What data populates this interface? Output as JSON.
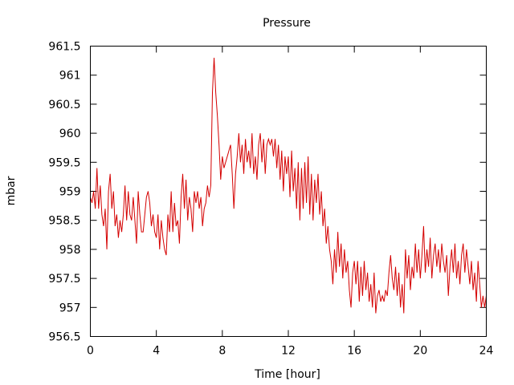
{
  "chart_data": {
    "type": "line",
    "title": "Pressure",
    "xlabel": "Time [hour]",
    "ylabel": "mbar",
    "xlim": [
      0,
      24
    ],
    "ylim": [
      956.5,
      961.5
    ],
    "xticks": [
      0,
      4,
      8,
      12,
      16,
      20,
      24
    ],
    "yticks": [
      956.5,
      957,
      957.5,
      958,
      958.5,
      959,
      959.5,
      960,
      960.5,
      961,
      961.5
    ],
    "ytick_labels": [
      "956.5",
      "957",
      "957.5",
      "958",
      "958.5",
      "959",
      "959.5",
      "960",
      "960.5",
      "961",
      "961.5"
    ],
    "grid": false,
    "legend": "none",
    "series": [
      {
        "color": "#d40000",
        "points": [
          [
            0.0,
            958.9
          ],
          [
            0.1,
            958.8
          ],
          [
            0.2,
            959.0
          ],
          [
            0.3,
            958.7
          ],
          [
            0.4,
            959.4
          ],
          [
            0.5,
            958.7
          ],
          [
            0.6,
            959.1
          ],
          [
            0.7,
            958.6
          ],
          [
            0.8,
            958.4
          ],
          [
            0.9,
            958.7
          ],
          [
            1.0,
            958.0
          ],
          [
            1.1,
            959.0
          ],
          [
            1.2,
            959.3
          ],
          [
            1.3,
            958.7
          ],
          [
            1.4,
            959.0
          ],
          [
            1.5,
            958.4
          ],
          [
            1.6,
            958.6
          ],
          [
            1.7,
            958.2
          ],
          [
            1.8,
            958.5
          ],
          [
            1.9,
            958.3
          ],
          [
            2.0,
            958.6
          ],
          [
            2.1,
            959.1
          ],
          [
            2.2,
            958.5
          ],
          [
            2.3,
            959.0
          ],
          [
            2.4,
            958.6
          ],
          [
            2.5,
            958.5
          ],
          [
            2.6,
            958.9
          ],
          [
            2.7,
            958.5
          ],
          [
            2.8,
            958.1
          ],
          [
            2.9,
            959.0
          ],
          [
            3.0,
            958.6
          ],
          [
            3.1,
            958.3
          ],
          [
            3.2,
            958.3
          ],
          [
            3.3,
            958.6
          ],
          [
            3.4,
            958.9
          ],
          [
            3.5,
            959.0
          ],
          [
            3.6,
            958.8
          ],
          [
            3.7,
            958.4
          ],
          [
            3.8,
            958.6
          ],
          [
            3.9,
            958.3
          ],
          [
            4.0,
            958.2
          ],
          [
            4.1,
            958.6
          ],
          [
            4.2,
            958.0
          ],
          [
            4.3,
            958.5
          ],
          [
            4.4,
            958.2
          ],
          [
            4.5,
            958.0
          ],
          [
            4.6,
            957.9
          ],
          [
            4.7,
            958.6
          ],
          [
            4.8,
            958.3
          ],
          [
            4.9,
            959.0
          ],
          [
            5.0,
            958.3
          ],
          [
            5.1,
            958.8
          ],
          [
            5.2,
            958.4
          ],
          [
            5.3,
            958.5
          ],
          [
            5.4,
            958.1
          ],
          [
            5.5,
            958.9
          ],
          [
            5.6,
            959.3
          ],
          [
            5.7,
            958.7
          ],
          [
            5.8,
            959.2
          ],
          [
            5.9,
            958.5
          ],
          [
            6.0,
            958.9
          ],
          [
            6.1,
            958.7
          ],
          [
            6.2,
            958.3
          ],
          [
            6.3,
            959.0
          ],
          [
            6.4,
            958.8
          ],
          [
            6.5,
            959.0
          ],
          [
            6.6,
            958.7
          ],
          [
            6.7,
            958.9
          ],
          [
            6.8,
            958.4
          ],
          [
            6.9,
            958.7
          ],
          [
            7.0,
            958.8
          ],
          [
            7.1,
            959.1
          ],
          [
            7.2,
            958.9
          ],
          [
            7.3,
            959.1
          ],
          [
            7.4,
            960.7
          ],
          [
            7.5,
            961.3
          ],
          [
            7.6,
            960.7
          ],
          [
            7.7,
            960.3
          ],
          [
            7.8,
            959.8
          ],
          [
            7.9,
            959.2
          ],
          [
            8.0,
            959.6
          ],
          [
            8.1,
            959.4
          ],
          [
            8.2,
            959.5
          ],
          [
            8.3,
            959.6
          ],
          [
            8.4,
            959.7
          ],
          [
            8.5,
            959.8
          ],
          [
            8.6,
            959.3
          ],
          [
            8.7,
            958.7
          ],
          [
            8.8,
            959.3
          ],
          [
            8.9,
            959.6
          ],
          [
            9.0,
            960.0
          ],
          [
            9.1,
            959.5
          ],
          [
            9.2,
            959.8
          ],
          [
            9.3,
            959.3
          ],
          [
            9.4,
            959.9
          ],
          [
            9.5,
            959.5
          ],
          [
            9.6,
            959.7
          ],
          [
            9.7,
            959.4
          ],
          [
            9.8,
            960.0
          ],
          [
            9.9,
            959.3
          ],
          [
            10.0,
            959.6
          ],
          [
            10.1,
            959.2
          ],
          [
            10.2,
            959.8
          ],
          [
            10.3,
            960.0
          ],
          [
            10.4,
            959.5
          ],
          [
            10.5,
            959.9
          ],
          [
            10.6,
            959.3
          ],
          [
            10.7,
            959.8
          ],
          [
            10.8,
            959.9
          ],
          [
            10.9,
            959.8
          ],
          [
            11.0,
            959.9
          ],
          [
            11.1,
            959.6
          ],
          [
            11.2,
            959.9
          ],
          [
            11.3,
            959.4
          ],
          [
            11.4,
            959.8
          ],
          [
            11.5,
            959.2
          ],
          [
            11.6,
            959.7
          ],
          [
            11.7,
            959.0
          ],
          [
            11.8,
            959.6
          ],
          [
            11.9,
            959.3
          ],
          [
            12.0,
            959.6
          ],
          [
            12.1,
            958.9
          ],
          [
            12.2,
            959.7
          ],
          [
            12.3,
            959.0
          ],
          [
            12.4,
            959.4
          ],
          [
            12.5,
            958.7
          ],
          [
            12.6,
            959.5
          ],
          [
            12.7,
            958.5
          ],
          [
            12.8,
            959.4
          ],
          [
            12.9,
            958.7
          ],
          [
            13.0,
            959.5
          ],
          [
            13.1,
            958.8
          ],
          [
            13.2,
            959.6
          ],
          [
            13.3,
            958.6
          ],
          [
            13.4,
            959.3
          ],
          [
            13.5,
            958.5
          ],
          [
            13.6,
            959.2
          ],
          [
            13.7,
            958.8
          ],
          [
            13.8,
            959.3
          ],
          [
            13.9,
            958.6
          ],
          [
            14.0,
            959.0
          ],
          [
            14.1,
            958.4
          ],
          [
            14.2,
            958.7
          ],
          [
            14.3,
            958.1
          ],
          [
            14.4,
            958.4
          ],
          [
            14.5,
            958.0
          ],
          [
            14.6,
            957.8
          ],
          [
            14.7,
            957.4
          ],
          [
            14.8,
            958.0
          ],
          [
            14.9,
            957.6
          ],
          [
            15.0,
            958.3
          ],
          [
            15.1,
            957.7
          ],
          [
            15.2,
            958.1
          ],
          [
            15.3,
            957.5
          ],
          [
            15.4,
            958.0
          ],
          [
            15.5,
            957.6
          ],
          [
            15.6,
            957.8
          ],
          [
            15.7,
            957.3
          ],
          [
            15.8,
            957.0
          ],
          [
            15.9,
            957.6
          ],
          [
            16.0,
            957.8
          ],
          [
            16.1,
            957.4
          ],
          [
            16.2,
            957.8
          ],
          [
            16.3,
            957.1
          ],
          [
            16.4,
            957.7
          ],
          [
            16.5,
            957.2
          ],
          [
            16.6,
            957.8
          ],
          [
            16.7,
            957.3
          ],
          [
            16.8,
            957.6
          ],
          [
            16.9,
            957.1
          ],
          [
            17.0,
            957.4
          ],
          [
            17.1,
            957.0
          ],
          [
            17.2,
            957.6
          ],
          [
            17.3,
            956.9
          ],
          [
            17.4,
            957.2
          ],
          [
            17.5,
            957.3
          ],
          [
            17.6,
            957.1
          ],
          [
            17.7,
            957.2
          ],
          [
            17.8,
            957.1
          ],
          [
            17.9,
            957.3
          ],
          [
            18.0,
            957.2
          ],
          [
            18.1,
            957.6
          ],
          [
            18.2,
            957.9
          ],
          [
            18.3,
            957.5
          ],
          [
            18.4,
            957.3
          ],
          [
            18.5,
            957.7
          ],
          [
            18.6,
            957.2
          ],
          [
            18.7,
            957.6
          ],
          [
            18.8,
            957.0
          ],
          [
            18.9,
            957.4
          ],
          [
            19.0,
            956.9
          ],
          [
            19.1,
            958.0
          ],
          [
            19.2,
            957.5
          ],
          [
            19.3,
            957.9
          ],
          [
            19.4,
            957.3
          ],
          [
            19.5,
            957.7
          ],
          [
            19.6,
            957.5
          ],
          [
            19.7,
            958.1
          ],
          [
            19.8,
            957.6
          ],
          [
            19.9,
            958.0
          ],
          [
            20.0,
            957.5
          ],
          [
            20.1,
            957.9
          ],
          [
            20.2,
            958.4
          ],
          [
            20.3,
            957.6
          ],
          [
            20.4,
            958.0
          ],
          [
            20.5,
            957.7
          ],
          [
            20.6,
            958.2
          ],
          [
            20.7,
            957.5
          ],
          [
            20.8,
            957.9
          ],
          [
            20.9,
            958.1
          ],
          [
            21.0,
            957.7
          ],
          [
            21.1,
            958.0
          ],
          [
            21.2,
            957.6
          ],
          [
            21.3,
            958.1
          ],
          [
            21.4,
            957.8
          ],
          [
            21.5,
            957.6
          ],
          [
            21.6,
            957.9
          ],
          [
            21.7,
            957.2
          ],
          [
            21.8,
            957.7
          ],
          [
            21.9,
            958.0
          ],
          [
            22.0,
            957.6
          ],
          [
            22.1,
            958.1
          ],
          [
            22.2,
            957.5
          ],
          [
            22.3,
            957.8
          ],
          [
            22.4,
            957.4
          ],
          [
            22.5,
            957.9
          ],
          [
            22.6,
            958.1
          ],
          [
            22.7,
            957.6
          ],
          [
            22.8,
            958.0
          ],
          [
            22.9,
            957.7
          ],
          [
            23.0,
            957.4
          ],
          [
            23.1,
            957.8
          ],
          [
            23.2,
            957.3
          ],
          [
            23.3,
            957.6
          ],
          [
            23.4,
            957.1
          ],
          [
            23.5,
            957.8
          ],
          [
            23.6,
            957.4
          ],
          [
            23.7,
            957.0
          ],
          [
            23.8,
            957.2
          ],
          [
            23.9,
            957.0
          ],
          [
            24.0,
            957.2
          ]
        ]
      }
    ]
  }
}
